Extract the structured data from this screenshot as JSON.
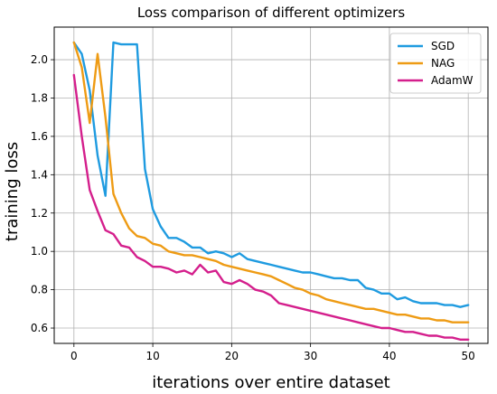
{
  "chart_data": {
    "type": "line",
    "title": "Loss comparison of different optimizers",
    "xlabel": "iterations over entire dataset",
    "ylabel": "training loss",
    "xlim": [
      -2.5,
      52.5
    ],
    "ylim": [
      0.52,
      2.17
    ],
    "xticks": [
      0,
      10,
      20,
      30,
      40,
      50
    ],
    "yticks": [
      0.6,
      0.8,
      1.0,
      1.2,
      1.4,
      1.6,
      1.8,
      2.0
    ],
    "grid": true,
    "legend_position": "top-right",
    "series": [
      {
        "name": "SGD",
        "color": "#1f9be0",
        "x": [
          0,
          1,
          2,
          3,
          4,
          5,
          6,
          7,
          8,
          9,
          10,
          11,
          12,
          13,
          14,
          15,
          16,
          17,
          18,
          19,
          20,
          21,
          22,
          23,
          24,
          25,
          26,
          27,
          28,
          29,
          30,
          31,
          32,
          33,
          34,
          35,
          36,
          37,
          38,
          39,
          40,
          41,
          42,
          43,
          44,
          45,
          46,
          47,
          48,
          49,
          50
        ],
        "y": [
          2.09,
          2.03,
          1.84,
          1.5,
          1.29,
          2.09,
          2.08,
          2.08,
          2.08,
          1.43,
          1.22,
          1.13,
          1.07,
          1.07,
          1.05,
          1.02,
          1.02,
          0.99,
          1.0,
          0.99,
          0.97,
          0.99,
          0.96,
          0.95,
          0.94,
          0.93,
          0.92,
          0.91,
          0.9,
          0.89,
          0.89,
          0.88,
          0.87,
          0.86,
          0.86,
          0.85,
          0.85,
          0.81,
          0.8,
          0.78,
          0.78,
          0.75,
          0.76,
          0.74,
          0.73,
          0.73,
          0.73,
          0.72,
          0.72,
          0.71,
          0.72
        ]
      },
      {
        "name": "NAG",
        "color": "#ee9b14",
        "x": [
          0,
          1,
          2,
          3,
          4,
          5,
          6,
          7,
          8,
          9,
          10,
          11,
          12,
          13,
          14,
          15,
          16,
          17,
          18,
          19,
          20,
          21,
          22,
          23,
          24,
          25,
          26,
          27,
          28,
          29,
          30,
          31,
          32,
          33,
          34,
          35,
          36,
          37,
          38,
          39,
          40,
          41,
          42,
          43,
          44,
          45,
          46,
          47,
          48,
          49,
          50
        ],
        "y": [
          2.09,
          1.96,
          1.67,
          2.03,
          1.7,
          1.3,
          1.2,
          1.12,
          1.08,
          1.07,
          1.04,
          1.03,
          1.0,
          0.99,
          0.98,
          0.98,
          0.97,
          0.96,
          0.95,
          0.93,
          0.92,
          0.91,
          0.9,
          0.89,
          0.88,
          0.87,
          0.85,
          0.83,
          0.81,
          0.8,
          0.78,
          0.77,
          0.75,
          0.74,
          0.73,
          0.72,
          0.71,
          0.7,
          0.7,
          0.69,
          0.68,
          0.67,
          0.67,
          0.66,
          0.65,
          0.65,
          0.64,
          0.64,
          0.63,
          0.63,
          0.63
        ]
      },
      {
        "name": "AdamW",
        "color": "#d41f8c",
        "x": [
          0,
          1,
          2,
          3,
          4,
          5,
          6,
          7,
          8,
          9,
          10,
          11,
          12,
          13,
          14,
          15,
          16,
          17,
          18,
          19,
          20,
          21,
          22,
          23,
          24,
          25,
          26,
          27,
          28,
          29,
          30,
          31,
          32,
          33,
          34,
          35,
          36,
          37,
          38,
          39,
          40,
          41,
          42,
          43,
          44,
          45,
          46,
          47,
          48,
          49,
          50
        ],
        "y": [
          1.92,
          1.6,
          1.32,
          1.21,
          1.11,
          1.09,
          1.03,
          1.02,
          0.97,
          0.95,
          0.92,
          0.92,
          0.91,
          0.89,
          0.9,
          0.88,
          0.93,
          0.89,
          0.9,
          0.84,
          0.83,
          0.85,
          0.83,
          0.8,
          0.79,
          0.77,
          0.73,
          0.72,
          0.71,
          0.7,
          0.69,
          0.68,
          0.67,
          0.66,
          0.65,
          0.64,
          0.63,
          0.62,
          0.61,
          0.6,
          0.6,
          0.59,
          0.58,
          0.58,
          0.57,
          0.56,
          0.56,
          0.55,
          0.55,
          0.54,
          0.54
        ]
      }
    ]
  }
}
